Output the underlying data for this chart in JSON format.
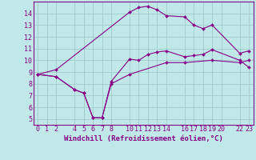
{
  "xlabel": "Windchill (Refroidissement éolien,°C)",
  "bg_color": "#c0e8e8",
  "grid_color": "#a0cccc",
  "line_color": "#880088",
  "spine_color": "#880088",
  "ylim": [
    4.5,
    15.0
  ],
  "xlim": [
    -0.5,
    23.5
  ],
  "ytick_vals": [
    5,
    6,
    7,
    8,
    9,
    10,
    11,
    12,
    13,
    14
  ],
  "xtick_vals": [
    0,
    1,
    2,
    4,
    5,
    6,
    7,
    8,
    10,
    11,
    12,
    13,
    14,
    16,
    17,
    18,
    19,
    20,
    22,
    23
  ],
  "line1_x": [
    0,
    2,
    10,
    11,
    12,
    13,
    14,
    16,
    17,
    18,
    19,
    22,
    23
  ],
  "line1_y": [
    8.8,
    9.2,
    14.1,
    14.5,
    14.6,
    14.3,
    13.8,
    13.7,
    13.0,
    12.7,
    13.0,
    10.6,
    10.8
  ],
  "line2_x": [
    0,
    2,
    4,
    5,
    6,
    7,
    8,
    10,
    11,
    12,
    13,
    14,
    16,
    17,
    18,
    19,
    22,
    23
  ],
  "line2_y": [
    8.8,
    8.6,
    7.5,
    7.2,
    5.1,
    5.1,
    8.2,
    10.1,
    10.0,
    10.5,
    10.7,
    10.8,
    10.3,
    10.4,
    10.5,
    10.9,
    10.0,
    9.4
  ],
  "line3_x": [
    0,
    2,
    4,
    5,
    6,
    7,
    8,
    10,
    14,
    16,
    19,
    22,
    23
  ],
  "line3_y": [
    8.8,
    8.6,
    7.5,
    7.2,
    5.1,
    5.1,
    8.0,
    8.8,
    9.8,
    9.8,
    10.0,
    9.8,
    10.0
  ],
  "tick_fontsize": 6.0,
  "xlabel_fontsize": 6.5
}
